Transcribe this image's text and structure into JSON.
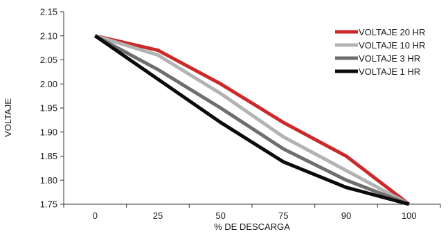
{
  "chart_data": {
    "type": "line",
    "categories": [
      "0",
      "25",
      "50",
      "75",
      "90",
      "100"
    ],
    "xlabel": "% DE DESCARGA",
    "ylabel": "VOLTAJE",
    "ylim": [
      1.75,
      2.15
    ],
    "yticks": [
      "1.75",
      "1.80",
      "1.85",
      "1.90",
      "1.95",
      "2.00",
      "2.05",
      "2.10",
      "2.15"
    ],
    "grid": false,
    "legend_position": "top-right",
    "series": [
      {
        "name": "VOLTAJE 20 HR",
        "color": "#cc2a2a",
        "values": [
          2.1,
          2.07,
          2.0,
          1.92,
          1.85,
          1.75
        ]
      },
      {
        "name": "VOLTAJE 10 HR",
        "color": "#b3b3b3",
        "values": [
          2.1,
          2.06,
          1.98,
          1.89,
          1.82,
          1.75
        ]
      },
      {
        "name": "VOLTAJE 3 HR",
        "color": "#6e6e6e",
        "values": [
          2.1,
          2.03,
          1.95,
          1.865,
          1.8,
          1.75
        ]
      },
      {
        "name": "VOLTAJE 1 HR",
        "color": "#0a0a0a",
        "values": [
          2.1,
          2.01,
          1.92,
          1.838,
          1.785,
          1.75
        ]
      }
    ]
  }
}
